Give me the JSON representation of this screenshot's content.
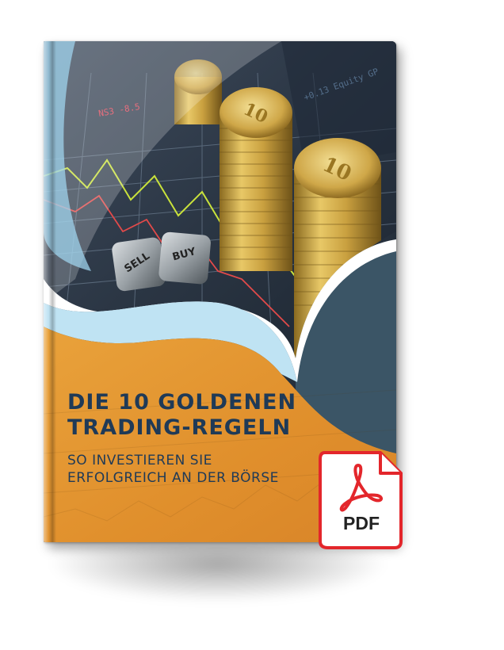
{
  "cover": {
    "title_line1": "DIE 10 GOLDENEN",
    "title_line2": "TRADING-REGELN",
    "subtitle_line1": "SO INVESTIEREN SIE",
    "subtitle_line2": "ERFOLGREICH AN DER BÖRSE",
    "dice_sell": "SELL",
    "dice_buy": "BUY"
  },
  "badge": {
    "label": "PDF",
    "icon": "adobe-acrobat-icon"
  },
  "colors": {
    "title": "#1f3a57",
    "orange": "#e59a36",
    "light_blue": "#9fd3ec",
    "dark_slate": "#3b5566",
    "badge_red": "#e3262b"
  }
}
